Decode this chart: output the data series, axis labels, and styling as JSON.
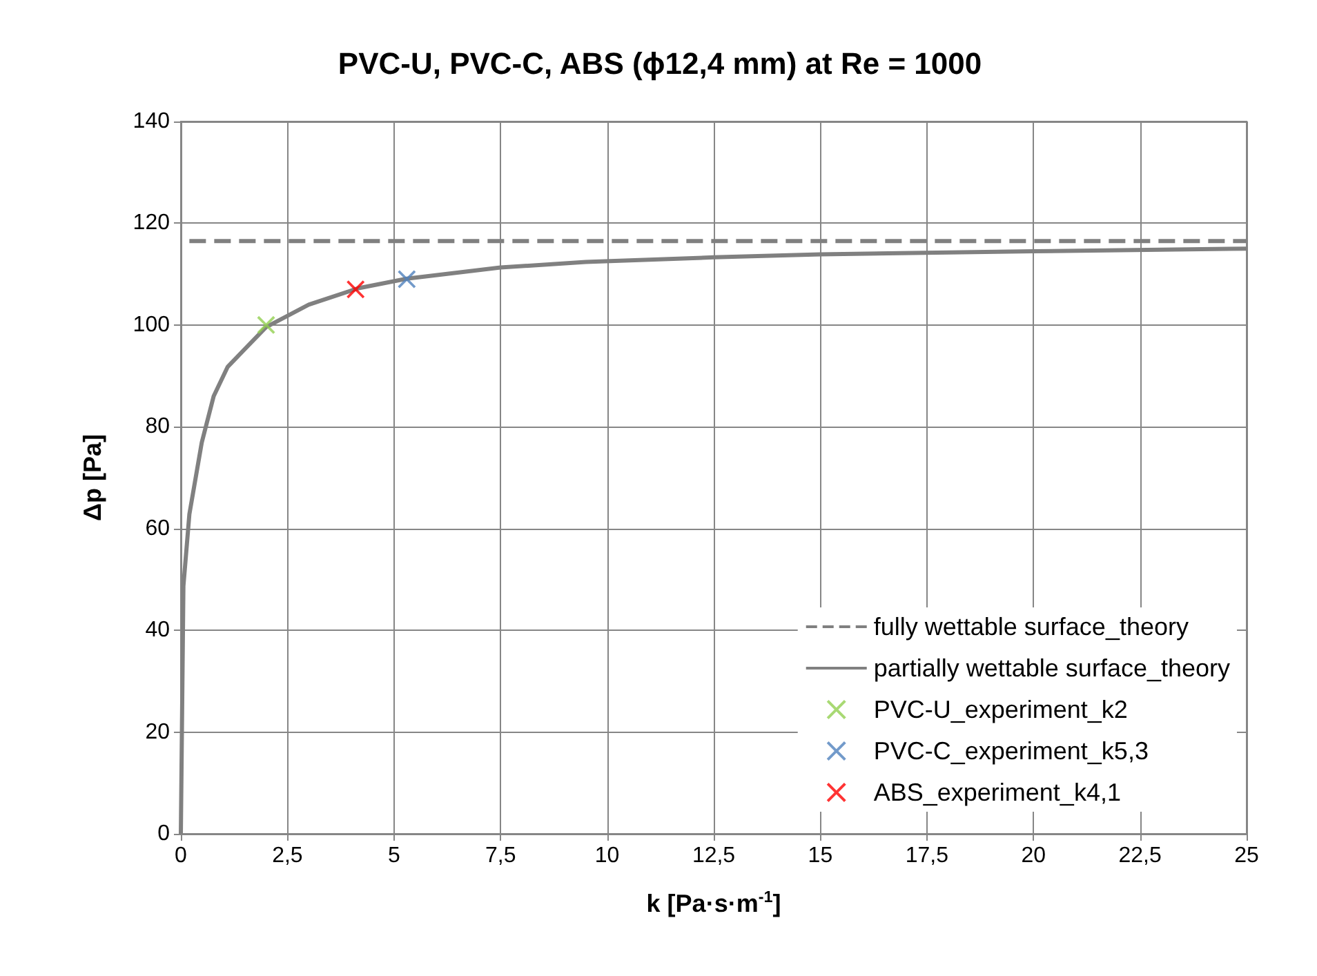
{
  "chart_data": {
    "type": "line",
    "title": "PVC-U, PVC-C, ABS (ϕ12,4 mm) at Re = 1000",
    "xlabel": "k [Pa·s·m$^{-1}$]",
    "ylabel": "Δp [Pa]",
    "xlim": [
      0,
      25
    ],
    "xticks": [
      0,
      {
        "value": 2.5,
        "label": "2,5"
      },
      5,
      {
        "value": 7.5,
        "label": "7,5"
      },
      10,
      {
        "value": 12.5,
        "label": "12,5"
      },
      15,
      {
        "value": 17.5,
        "label": "17,5"
      },
      20,
      {
        "value": 22.5,
        "label": "22,5"
      },
      25
    ],
    "ylim": [
      0,
      140
    ],
    "yticks": [
      0,
      20,
      40,
      60,
      80,
      100,
      120,
      140
    ],
    "grid": true,
    "legend": "bottom right",
    "series": [
      {
        "name": "fully wettable surface_theory",
        "line_style": "dashed",
        "marker": "none",
        "color": "#808080",
        "x": [
          0.2,
          25
        ],
        "values": [
          116.5,
          116.5
        ]
      },
      {
        "name": "partially wettable surface_theory",
        "line_style": "solid",
        "marker": "none",
        "color": "#808080",
        "x": [
          0,
          0.06,
          0.2,
          0.49,
          0.77,
          1.1,
          2,
          3,
          4.15,
          5.3,
          7.5,
          9.5,
          12.5,
          15,
          20,
          25
        ],
        "values": [
          0,
          48.7,
          62.8,
          76.9,
          86,
          91.8,
          99.6,
          104,
          107.2,
          109.1,
          111.3,
          112.4,
          113.3,
          113.9,
          114.5,
          115
        ]
      },
      {
        "name": "PVC-U_experiment_k2",
        "type": "scatter",
        "marker": "cross",
        "color": "#92d050",
        "x": [
          2
        ],
        "values": [
          100
        ]
      },
      {
        "name": "PVC-C_experiment_k5,3",
        "type": "scatter",
        "marker": "cross",
        "color": "#4f81bd",
        "x": [
          5.3
        ],
        "values": [
          109
        ]
      },
      {
        "name": "ABS_experiment_k4,1",
        "type": "scatter",
        "marker": "cross",
        "color": "#ff0000",
        "x": [
          4.1
        ],
        "values": [
          107
        ]
      }
    ]
  }
}
